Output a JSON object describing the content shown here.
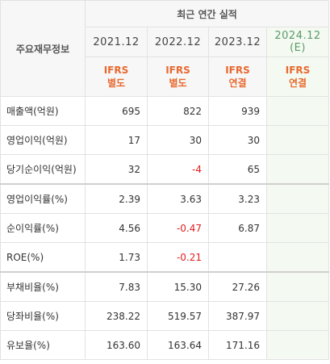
{
  "header": {
    "title": "주요재무정보",
    "group": "최근 연간 실적"
  },
  "columns": [
    {
      "period": "2021.12",
      "estimate": null,
      "accounting": [
        "IFRS",
        "별도"
      ]
    },
    {
      "period": "2022.12",
      "estimate": null,
      "accounting": [
        "IFRS",
        "별도"
      ]
    },
    {
      "period": "2023.12",
      "estimate": null,
      "accounting": [
        "IFRS",
        "연결"
      ]
    },
    {
      "period": "2024.12",
      "estimate": "(E)",
      "accounting": [
        "IFRS",
        "연결"
      ]
    }
  ],
  "rows": [
    {
      "label": "매출액(억원)",
      "values": [
        "695",
        "822",
        "939",
        null
      ]
    },
    {
      "label": "영업이익(억원)",
      "values": [
        "17",
        "30",
        "30",
        null
      ]
    },
    {
      "label": "당기순이익(억원)",
      "values": [
        "32",
        "-4",
        "65",
        null
      ]
    },
    {
      "label": "영업이익률(%)",
      "values": [
        "2.39",
        "3.63",
        "3.23",
        null
      ]
    },
    {
      "label": "순이익률(%)",
      "values": [
        "4.56",
        "-0.47",
        "6.87",
        null
      ]
    },
    {
      "label": "ROE(%)",
      "values": [
        "1.73",
        "-0.21",
        null,
        null
      ]
    },
    {
      "label": "부채비율(%)",
      "values": [
        "7.83",
        "15.30",
        "27.26",
        null
      ]
    },
    {
      "label": "당좌비율(%)",
      "values": [
        "238.22",
        "519.57",
        "387.97",
        null
      ]
    },
    {
      "label": "유보율(%)",
      "values": [
        "163.60",
        "163.64",
        "171.16",
        null
      ]
    }
  ]
}
